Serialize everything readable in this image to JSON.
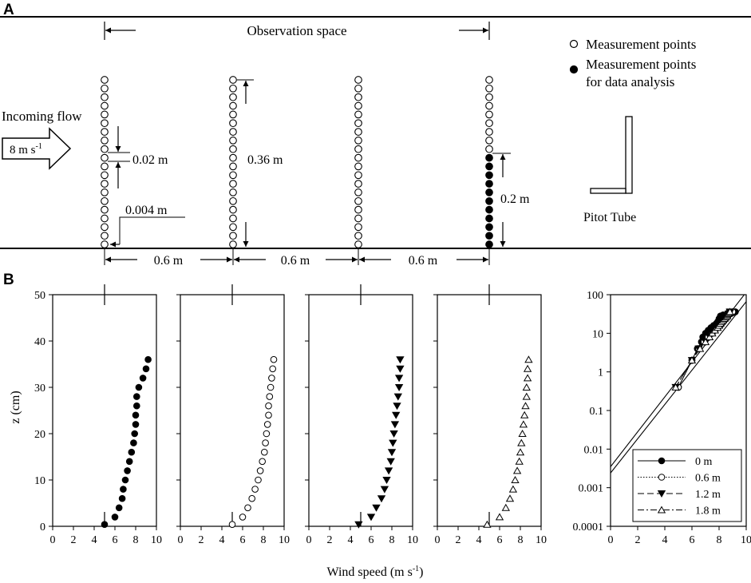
{
  "panel_a": {
    "letter": "A",
    "observation_space": "Observation space",
    "legend_open": "Measurement points",
    "legend_filled_line1": "Measurement points",
    "legend_filled_line2": "for data analysis",
    "incoming_flow": "Incoming flow",
    "flow_speed": "8 m s",
    "flow_speed_sup": "-1",
    "spacing_label": "0.02 m",
    "height_label": "0.36 m",
    "bottom_label": "0.004 m",
    "analysis_label": "0.2 m",
    "pitot_tube": "Pitot Tube",
    "gap_labels": [
      "0.6 m",
      "0.6 m",
      "0.6 m"
    ]
  },
  "panel_b": {
    "letter": "B",
    "xlabel_main": "Wind speed (m s",
    "xlabel_sup": "-1",
    "xlabel_end": ")"
  },
  "chart_data": [
    {
      "type": "scatter",
      "series_name": "0 m",
      "marker": "filled-circle",
      "ylabel": "z (cm)",
      "xlim": [
        0,
        10
      ],
      "ylim": [
        0,
        50
      ],
      "xticks": [
        "0",
        "2",
        "4",
        "6",
        "8",
        "10"
      ],
      "yticks": [
        "0",
        "10",
        "20",
        "30",
        "40",
        "50"
      ],
      "x": [
        5.0,
        6.0,
        6.4,
        6.7,
        6.8,
        7.0,
        7.2,
        7.4,
        7.6,
        7.8,
        7.9,
        8.0,
        8.0,
        8.1,
        8.1,
        8.3,
        8.7,
        9.0,
        9.2
      ],
      "y": [
        0.4,
        2,
        4,
        6,
        8,
        10,
        12,
        14,
        16,
        18,
        20,
        22,
        24,
        26,
        28,
        30,
        32,
        34,
        36
      ]
    },
    {
      "type": "scatter",
      "series_name": "0.6 m",
      "marker": "open-circle",
      "xlim": [
        0,
        10
      ],
      "ylim": [
        0,
        50
      ],
      "xticks": [
        "0",
        "2",
        "4",
        "6",
        "8",
        "10"
      ],
      "yticks": [
        "0",
        "10",
        "20",
        "30",
        "40",
        "50"
      ],
      "x": [
        5.0,
        6.0,
        6.5,
        6.9,
        7.2,
        7.5,
        7.7,
        7.9,
        8.1,
        8.2,
        8.3,
        8.4,
        8.5,
        8.5,
        8.6,
        8.7,
        8.8,
        8.9,
        9.0
      ],
      "y": [
        0.4,
        2,
        4,
        6,
        8,
        10,
        12,
        14,
        16,
        18,
        20,
        22,
        24,
        26,
        28,
        30,
        32,
        34,
        36
      ]
    },
    {
      "type": "scatter",
      "series_name": "1.2 m",
      "marker": "filled-triangle-down",
      "xlim": [
        0,
        10
      ],
      "ylim": [
        0,
        50
      ],
      "xticks": [
        "0",
        "2",
        "4",
        "6",
        "8",
        "10"
      ],
      "yticks": [
        "0",
        "10",
        "20",
        "30",
        "40",
        "50"
      ],
      "x": [
        4.8,
        6.0,
        6.5,
        7.0,
        7.3,
        7.5,
        7.7,
        7.9,
        8.0,
        8.1,
        8.2,
        8.3,
        8.4,
        8.5,
        8.6,
        8.7,
        8.7,
        8.8,
        8.8
      ],
      "y": [
        0.4,
        2,
        4,
        6,
        8,
        10,
        12,
        14,
        16,
        18,
        20,
        22,
        24,
        26,
        28,
        30,
        32,
        34,
        36
      ]
    },
    {
      "type": "scatter",
      "series_name": "1.8 m",
      "marker": "open-triangle-up",
      "xlim": [
        0,
        10
      ],
      "ylim": [
        0,
        50
      ],
      "xticks": [
        "0",
        "2",
        "4",
        "6",
        "8",
        "10"
      ],
      "yticks": [
        "0",
        "10",
        "20",
        "30",
        "40",
        "50"
      ],
      "x": [
        4.8,
        6.0,
        6.6,
        7.0,
        7.3,
        7.5,
        7.7,
        7.9,
        8.0,
        8.1,
        8.2,
        8.3,
        8.4,
        8.5,
        8.6,
        8.6,
        8.7,
        8.7,
        8.8
      ],
      "y": [
        0.4,
        2,
        4,
        6,
        8,
        10,
        12,
        14,
        16,
        18,
        20,
        22,
        24,
        26,
        28,
        30,
        32,
        34,
        36
      ]
    },
    {
      "type": "line",
      "yscale": "log",
      "xlim": [
        0,
        10
      ],
      "ylim": [
        0.0001,
        100
      ],
      "xticks": [
        "0",
        "2",
        "4",
        "6",
        "8",
        "10"
      ],
      "yticks": [
        "0.0001",
        "0.001",
        "0.01",
        "0.1",
        "1",
        "10",
        "100"
      ],
      "fit_lines": [
        {
          "x": [
            0,
            10
          ],
          "y": [
            0.0035,
            116
          ]
        },
        {
          "x": [
            0,
            10
          ],
          "y": [
            0.0024,
            66
          ]
        }
      ],
      "legend": [
        "0 m",
        "0.6 m",
        "1.2 m",
        "1.8 m"
      ],
      "series": [
        {
          "name": "0 m",
          "marker": "filled-circle",
          "x": [
            5.0,
            6.0,
            6.4,
            6.7,
            6.8,
            7.0,
            7.2,
            7.4,
            7.6,
            7.8,
            7.9,
            8.0,
            8.0,
            8.1,
            8.1,
            8.3,
            8.7,
            9.0,
            9.2
          ],
          "y": [
            0.4,
            2,
            4,
            6,
            8,
            10,
            12,
            14,
            16,
            18,
            20,
            22,
            24,
            26,
            28,
            30,
            32,
            34,
            36
          ]
        },
        {
          "name": "0.6 m",
          "marker": "open-circle",
          "x": [
            5.0,
            6.0,
            6.5,
            6.9,
            7.2,
            7.5,
            7.7,
            7.9,
            8.1,
            8.2,
            8.3,
            8.4,
            8.5,
            8.5,
            8.6,
            8.7,
            8.8,
            8.9,
            9.0
          ],
          "y": [
            0.4,
            2,
            4,
            6,
            8,
            10,
            12,
            14,
            16,
            18,
            20,
            22,
            24,
            26,
            28,
            30,
            32,
            34,
            36
          ]
        },
        {
          "name": "1.2 m",
          "marker": "filled-triangle-down",
          "x": [
            4.8,
            6.0,
            6.5,
            7.0,
            7.3,
            7.5,
            7.7,
            7.9,
            8.0,
            8.1,
            8.2,
            8.3,
            8.4,
            8.5,
            8.6,
            8.7,
            8.7,
            8.8,
            8.8
          ],
          "y": [
            0.4,
            2,
            4,
            6,
            8,
            10,
            12,
            14,
            16,
            18,
            20,
            22,
            24,
            26,
            28,
            30,
            32,
            34,
            36
          ]
        },
        {
          "name": "1.8 m",
          "marker": "open-triangle-up",
          "x": [
            4.8,
            6.0,
            6.6,
            7.0,
            7.3,
            7.5,
            7.7,
            7.9,
            8.0,
            8.1,
            8.2,
            8.3,
            8.4,
            8.5,
            8.6,
            8.6,
            8.7,
            8.7,
            8.8
          ],
          "y": [
            0.4,
            2,
            4,
            6,
            8,
            10,
            12,
            14,
            16,
            18,
            20,
            22,
            24,
            26,
            28,
            30,
            32,
            34,
            36
          ]
        }
      ]
    }
  ]
}
